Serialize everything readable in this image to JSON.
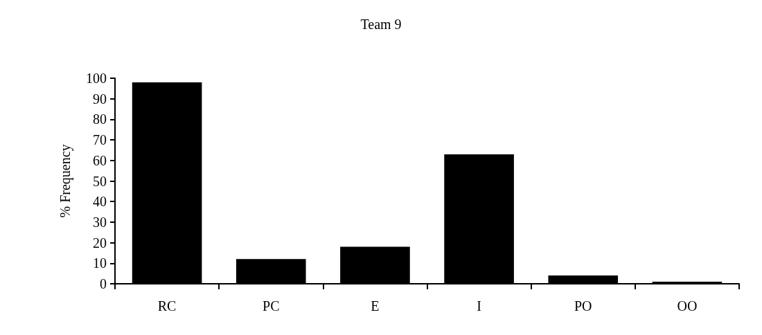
{
  "chart_data": {
    "type": "bar",
    "title": "Team 9",
    "ylabel": "% Frequency",
    "categories": [
      "RC",
      "PC",
      "E",
      "I",
      "PO",
      "OO"
    ],
    "values": [
      98,
      12,
      18,
      63,
      4,
      1
    ],
    "color": "#000000",
    "ylim": [
      0,
      100
    ],
    "yticks": [
      0,
      10,
      20,
      30,
      40,
      50,
      60,
      70,
      80,
      90,
      100
    ],
    "grid": false
  }
}
